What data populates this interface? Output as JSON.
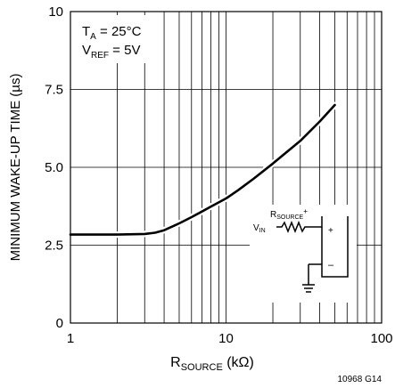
{
  "chart_data": {
    "type": "line",
    "x_scale": "log",
    "xlim": [
      1,
      100
    ],
    "ylim": [
      0,
      10
    ],
    "xlabel": "R",
    "xlabel_sub": "SOURCE",
    "xlabel_unit": " (kΩ)",
    "ylabel": "MINIMUM WAKE-UP TIME (µs)",
    "x_ticks": [
      {
        "value": 1,
        "label": "1"
      },
      {
        "value": 10,
        "label": "10"
      },
      {
        "value": 100,
        "label": "100"
      }
    ],
    "y_ticks": [
      {
        "value": 0,
        "label": "0"
      },
      {
        "value": 2.5,
        "label": "2.5"
      },
      {
        "value": 5,
        "label": "5.0"
      },
      {
        "value": 7.5,
        "label": "7.5"
      },
      {
        "value": 10,
        "label": "10"
      }
    ],
    "grid": true,
    "series": [
      {
        "x": [
          1,
          2,
          3,
          3.5,
          4,
          5,
          6,
          7,
          8,
          10,
          12,
          15,
          20,
          25,
          30,
          40,
          50
        ],
        "y": [
          2.84,
          2.84,
          2.86,
          2.9,
          2.98,
          3.2,
          3.4,
          3.58,
          3.74,
          4.0,
          4.27,
          4.63,
          5.12,
          5.52,
          5.85,
          6.47,
          7.0
        ]
      }
    ],
    "conditions": [
      {
        "main": "T",
        "sub": "A",
        "rest": " = 25°C"
      },
      {
        "main": "V",
        "sub": "REF",
        "rest": " = 5V"
      }
    ],
    "inset": {
      "resistor_label_main": "R",
      "resistor_label_sub": "SOURCE",
      "resistor_label_sup": "+",
      "input_label_main": "V",
      "input_label_sub": "IN",
      "plus_sign": "+",
      "minus_sign": "–"
    },
    "figure_id": "10968 G14"
  }
}
